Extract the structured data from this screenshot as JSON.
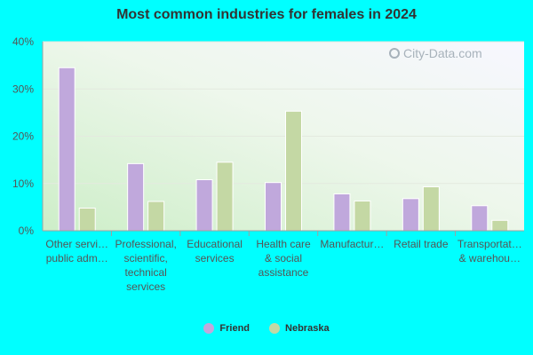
{
  "watermark": "City-Data.com",
  "chart_data": {
    "type": "bar",
    "title": "Most common industries for females in 2024",
    "xlabel": "",
    "ylabel": "",
    "ylim": [
      0,
      40
    ],
    "yticks": [
      "0%",
      "10%",
      "20%",
      "30%",
      "40%"
    ],
    "grid": true,
    "legend_position": "bottom-center",
    "categories": [
      [
        "Other servi…",
        "public adm…"
      ],
      [
        "Professional,",
        "scientific,",
        "technical",
        "services"
      ],
      [
        "Educational",
        "services"
      ],
      [
        "Health care",
        "& social",
        "assistance"
      ],
      [
        "Manufactur…"
      ],
      [
        "Retail trade"
      ],
      [
        "Transportat…",
        "& warehou…"
      ]
    ],
    "series": [
      {
        "name": "Friend",
        "color": "#c0a8dc",
        "values": [
          34.5,
          14.2,
          10.8,
          10.2,
          7.8,
          6.8,
          5.3
        ]
      },
      {
        "name": "Nebraska",
        "color": "#c4d8a4",
        "values": [
          4.8,
          6.2,
          14.5,
          25.3,
          6.3,
          9.3,
          2.2
        ]
      }
    ]
  }
}
